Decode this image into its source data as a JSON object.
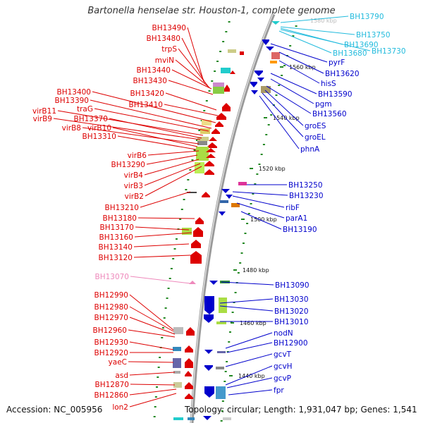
{
  "title": "Bartonella henselae str. Houston-1, complete genome",
  "footer": {
    "accession": "Accession: NC_005956",
    "topology": "Topology: circular; Length: 1,931,047 bp; Genes: 1,541"
  },
  "colors": {
    "minus_strand": "#dd0000",
    "plus_strand": "#0000cc",
    "cyan_label": "#22bbdd",
    "pink_label": "#ee88bb",
    "backbone": "#999999",
    "gc_dots": "#228822"
  },
  "kbp_ticks": [
    "1560 kbp",
    "1540 kbp",
    "1520 kbp",
    "1500 kbp",
    "1480 kbp",
    "1460 kbp",
    "1440 kbp"
  ],
  "faint_tick": "1580 kbp",
  "left_labels": [
    "BH13490",
    "BH13480",
    "trpS",
    "mviN",
    "BH13440",
    "BH13430",
    "BH13420",
    "BH13410",
    "BH13400",
    "BH13390",
    "traG",
    "virB11",
    "BH13370",
    "virB9",
    "virB8",
    "virB10",
    "BH13310",
    "virB6",
    "BH13290",
    "virB4",
    "virB3",
    "virB2",
    "BH13210",
    "BH13180",
    "BH13170",
    "BH13160",
    "BH13140",
    "BH13120",
    "BH13070",
    "BH12990",
    "BH12980",
    "BH12970",
    "BH12960",
    "BH12930",
    "BH12920",
    "yaeC",
    "asd",
    "BH12870",
    "BH12860",
    "lon2"
  ],
  "right_labels": [
    "BH13790",
    "BH13750",
    "BH13690",
    "BH13730",
    "BH13680",
    "pyrF",
    "BH13620",
    "hisS",
    "BH13590",
    "pgm",
    "BH13560",
    "groES",
    "groEL",
    "phnA",
    "BH13250",
    "BH13230",
    "ribF",
    "parA1",
    "BH13190",
    "BH13090",
    "BH13030",
    "BH13020",
    "BH13010",
    "nodN",
    "BH12900",
    "gcvT",
    "gcvH",
    "gcvP",
    "fpr"
  ]
}
